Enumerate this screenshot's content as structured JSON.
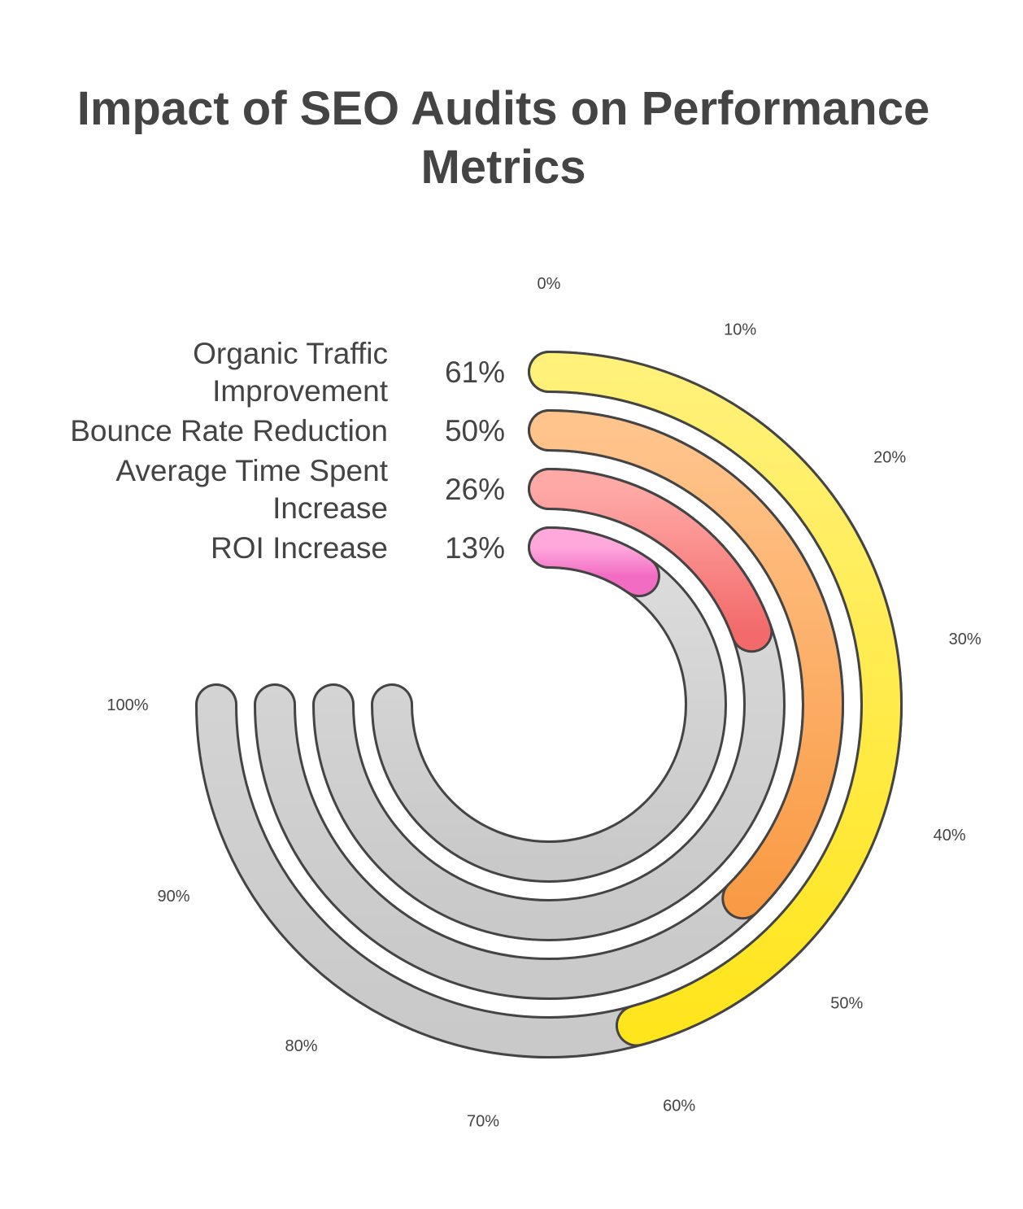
{
  "chart_data": {
    "type": "radial-bar",
    "title": "Impact of SEO Audits on Performance Metrics",
    "categories": [
      "Organic Traffic Improvement",
      "Bounce Rate Reduction",
      "Average Time Spent Increase",
      "ROI Increase"
    ],
    "values": [
      61,
      50,
      26,
      13
    ],
    "value_labels": [
      "61%",
      "50%",
      "26%",
      "13%"
    ],
    "value_unit": "%",
    "axis_range": [
      0,
      100
    ],
    "ticks": [
      {
        "value": 0,
        "label": "0%"
      },
      {
        "value": 10,
        "label": "10%"
      },
      {
        "value": 20,
        "label": "20%"
      },
      {
        "value": 30,
        "label": "30%"
      },
      {
        "value": 40,
        "label": "40%"
      },
      {
        "value": 50,
        "label": "50%"
      },
      {
        "value": 60,
        "label": "60%"
      },
      {
        "value": 70,
        "label": "70%"
      },
      {
        "value": 80,
        "label": "80%"
      },
      {
        "value": 90,
        "label": "90%"
      },
      {
        "value": 100,
        "label": "100%"
      }
    ],
    "colors": {
      "bars": [
        [
          "#FFF17A",
          "#FFE51C"
        ],
        [
          "#FFC48C",
          "#F99B45"
        ],
        [
          "#FFA9A6",
          "#F26A6A"
        ],
        [
          "#FFA8DC",
          "#F26CC3"
        ]
      ],
      "track": "#D9D9D9",
      "outline": "#444444"
    },
    "grid": false,
    "legend": "none"
  }
}
